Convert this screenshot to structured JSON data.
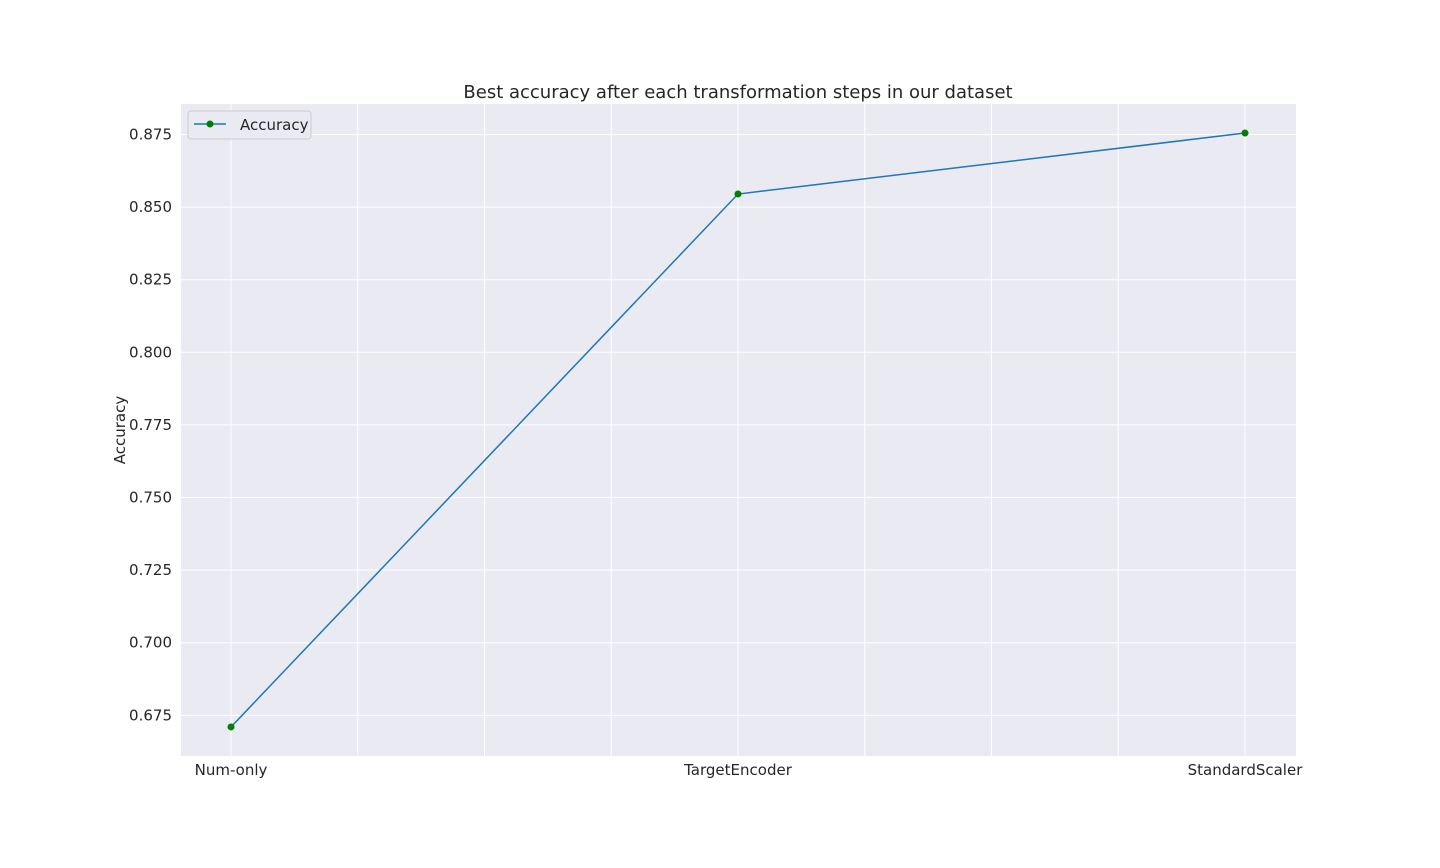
{
  "chart_data": {
    "type": "line",
    "title": "Best accuracy after each transformation steps in our dataset",
    "xlabel": "",
    "ylabel": "Accuracy",
    "categories": [
      "Num-only",
      "TargetEncoder",
      "StandardScaler"
    ],
    "series": [
      {
        "name": "Accuracy",
        "values": [
          0.671,
          0.8545,
          0.8755
        ],
        "line_color": "#1f77b4",
        "marker_color": "#008000"
      }
    ],
    "ylim": [
      0.661,
      0.8855
    ],
    "yticks": [
      "0.675",
      "0.700",
      "0.725",
      "0.750",
      "0.775",
      "0.800",
      "0.825",
      "0.850",
      "0.875"
    ],
    "grid": true,
    "legend": "top-left",
    "background_color": "#eaeaf2",
    "grid_color": "#ffffff"
  }
}
